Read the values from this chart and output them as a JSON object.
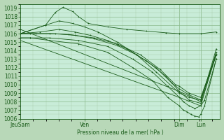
{
  "bg_color": "#b8d8b8",
  "plot_bg_color": "#c8ecd8",
  "grid_major_color": "#8ab88a",
  "grid_minor_color": "#a8cca8",
  "line_color": "#1a5c1a",
  "ylabel_text": "Pression niveau de la mer( hPa )",
  "x_tick_labels": [
    "JeuSam",
    "Ven",
    "Dim",
    "Lun"
  ],
  "x_tick_positions": [
    0.0,
    0.33,
    0.82,
    0.93
  ],
  "ylim": [
    1006,
    1019.5
  ],
  "xlim": [
    0.0,
    1.03
  ],
  "yticks": [
    1006,
    1007,
    1008,
    1009,
    1010,
    1011,
    1012,
    1013,
    1014,
    1015,
    1016,
    1017,
    1018,
    1019
  ],
  "series": [
    {
      "x": [
        0.0,
        0.13,
        0.18,
        0.22,
        0.27,
        0.3,
        0.35,
        0.45,
        0.55,
        0.65,
        0.75,
        0.82,
        0.93,
        1.01
      ],
      "y": [
        1016.0,
        1017.0,
        1018.5,
        1019.1,
        1018.6,
        1018.0,
        1017.2,
        1016.8,
        1016.5,
        1016.3,
        1016.1,
        1016.0,
        1016.0,
        1016.2
      ],
      "marker": "+"
    },
    {
      "x": [
        0.0,
        0.13,
        0.2,
        0.27,
        0.33,
        0.4,
        0.5,
        0.6,
        0.7,
        0.82,
        0.87,
        0.93,
        1.01
      ],
      "y": [
        1016.0,
        1017.0,
        1017.5,
        1017.2,
        1016.8,
        1016.2,
        1015.0,
        1013.5,
        1011.5,
        1009.0,
        1008.5,
        1008.2,
        1013.8
      ],
      "marker": "+"
    },
    {
      "x": [
        0.0,
        0.1,
        0.2,
        0.28,
        0.36,
        0.45,
        0.55,
        0.65,
        0.75,
        0.82,
        0.87,
        0.93,
        1.01
      ],
      "y": [
        1016.0,
        1016.2,
        1016.5,
        1016.2,
        1015.8,
        1015.2,
        1014.2,
        1012.8,
        1011.0,
        1009.2,
        1008.2,
        1007.8,
        1013.5
      ],
      "marker": "+"
    },
    {
      "x": [
        0.0,
        0.08,
        0.18,
        0.28,
        0.38,
        0.5,
        0.6,
        0.7,
        0.78,
        0.82,
        0.87,
        0.93,
        1.01
      ],
      "y": [
        1016.0,
        1016.0,
        1016.0,
        1015.8,
        1015.4,
        1014.6,
        1013.5,
        1012.0,
        1010.2,
        1009.5,
        1008.8,
        1008.2,
        1013.5
      ],
      "marker": "+"
    },
    {
      "x": [
        0.0,
        0.05,
        0.15,
        0.25,
        0.38,
        0.5,
        0.62,
        0.72,
        0.8,
        0.82,
        0.87,
        0.93,
        1.01
      ],
      "y": [
        1016.0,
        1016.0,
        1016.0,
        1015.9,
        1015.5,
        1014.8,
        1013.5,
        1011.8,
        1010.0,
        1009.8,
        1009.0,
        1008.5,
        1013.5
      ],
      "marker": "+"
    },
    {
      "x": [
        0.0,
        0.05,
        0.15,
        0.3,
        0.45,
        0.58,
        0.68,
        0.76,
        0.82,
        0.84,
        0.87,
        0.9,
        0.93,
        0.95,
        1.01
      ],
      "y": [
        1015.5,
        1015.5,
        1015.5,
        1015.2,
        1014.5,
        1013.0,
        1011.5,
        1009.8,
        1008.5,
        1008.0,
        1007.5,
        1007.2,
        1007.5,
        1008.2,
        1013.0
      ],
      "marker": "+"
    },
    {
      "x": [
        0.0,
        0.05,
        0.15,
        0.3,
        0.45,
        0.58,
        0.68,
        0.76,
        0.82,
        0.84,
        0.86,
        0.88,
        0.9,
        0.92,
        0.93,
        0.95,
        1.01
      ],
      "y": [
        1015.5,
        1015.5,
        1015.2,
        1014.8,
        1013.8,
        1012.0,
        1010.5,
        1008.5,
        1007.5,
        1007.0,
        1006.8,
        1006.5,
        1006.3,
        1006.2,
        1006.5,
        1007.5,
        1013.0
      ],
      "marker": "+"
    },
    {
      "x": [
        0.0,
        0.82,
        0.93,
        1.01
      ],
      "y": [
        1016.5,
        1009.2,
        1008.0,
        1014.2
      ],
      "marker": "+"
    },
    {
      "x": [
        0.0,
        0.82,
        0.93,
        1.01
      ],
      "y": [
        1015.2,
        1008.5,
        1007.5,
        1013.8
      ],
      "marker": null
    }
  ]
}
